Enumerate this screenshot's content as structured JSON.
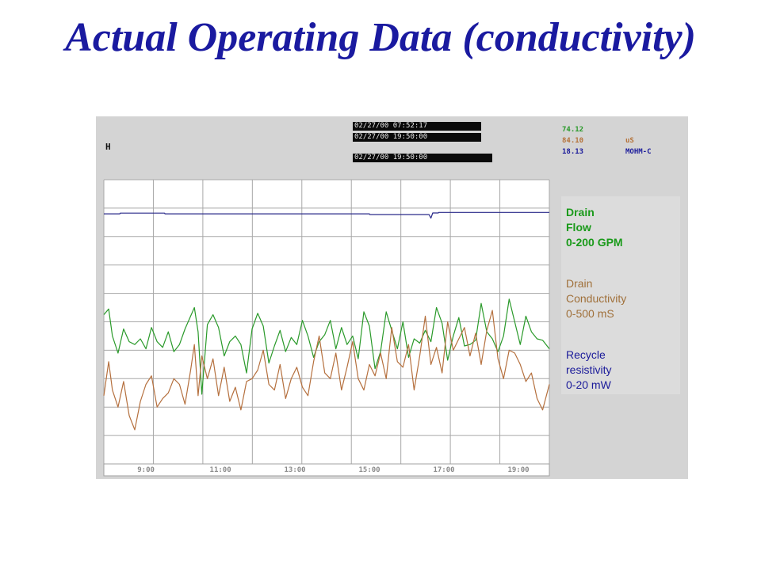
{
  "slide": {
    "title": "Actual Operating Data (conductivity)"
  },
  "display": {
    "marker": "H",
    "timestamps": [
      "02/27/00 07:52:17",
      "02/27/00 19:50:00",
      "02/27/00 19:50:00"
    ],
    "readouts": [
      {
        "value": "74.12",
        "unit": "",
        "color": "#2a9a2a"
      },
      {
        "value": "84.10",
        "unit": "uS",
        "color": "#b5733a"
      },
      {
        "value": "18.13",
        "unit": "MOHM-C",
        "color": "#1a1a9a"
      }
    ]
  },
  "legend": {
    "flow": {
      "line1": "Drain",
      "line2": "Flow",
      "line3": "0-200 GPM",
      "color": "#1a9a1a"
    },
    "conductivity": {
      "line1": "Drain",
      "line2": "Conductivity",
      "line3": "0-500 mS",
      "color": "#a0703a"
    },
    "resistivity": {
      "line1": "Recycle",
      "line2": "resistivity",
      "line3": "0-20 mW",
      "color": "#1a1a9a"
    }
  },
  "chart_data": {
    "type": "line",
    "x_ticks": [
      "9:00",
      "11:00",
      "13:00",
      "15:00",
      "17:00",
      "19:00"
    ],
    "x_tick_hours": [
      9,
      11,
      13,
      15,
      17,
      19
    ],
    "xlim": [
      7.87,
      19.83
    ],
    "series": [
      {
        "name": "Drain Flow 0-200 GPM",
        "color": "#2a9a2a",
        "x": [
          7.87,
          8.0,
          8.1,
          8.25,
          8.4,
          8.55,
          8.7,
          8.85,
          9.0,
          9.15,
          9.3,
          9.45,
          9.6,
          9.75,
          9.9,
          10.05,
          10.2,
          10.3,
          10.4,
          10.5,
          10.65,
          10.8,
          10.95,
          11.1,
          11.25,
          11.4,
          11.55,
          11.7,
          11.85,
          12.0,
          12.15,
          12.3,
          12.45,
          12.6,
          12.75,
          12.9,
          13.05,
          13.2,
          13.35,
          13.5,
          13.65,
          13.8,
          13.95,
          14.1,
          14.25,
          14.4,
          14.55,
          14.7,
          14.85,
          15.0,
          15.15,
          15.3,
          15.45,
          15.6,
          15.75,
          15.9,
          16.05,
          16.2,
          16.35,
          16.5,
          16.65,
          16.8,
          16.95,
          17.1,
          17.25,
          17.4,
          17.55,
          17.7,
          17.85,
          18.0,
          18.15,
          18.3,
          18.45,
          18.6,
          18.75,
          18.9,
          19.05,
          19.2,
          19.35,
          19.5,
          19.65,
          19.83
        ],
        "y": [
          105,
          109,
          90,
          78,
          95,
          86,
          84,
          88,
          81,
          96,
          86,
          82,
          93,
          79,
          84,
          95,
          104,
          110,
          93,
          49,
          98,
          105,
          96,
          76,
          86,
          90,
          84,
          64,
          95,
          106,
          97,
          71,
          83,
          94,
          79,
          89,
          84,
          101,
          90,
          75,
          86,
          91,
          101,
          81,
          96,
          84,
          90,
          74,
          107,
          97,
          67,
          79,
          107,
          94,
          81,
          100,
          75,
          88,
          85,
          94,
          86,
          110,
          99,
          73,
          90,
          103,
          83,
          84,
          87,
          113,
          93,
          88,
          79,
          90,
          116,
          100,
          84,
          104,
          93,
          88,
          87,
          81
        ]
      },
      {
        "name": "Drain Conductivity 0-500 mS",
        "color": "#b5703e",
        "x": [
          7.87,
          8.0,
          8.1,
          8.25,
          8.4,
          8.55,
          8.7,
          8.85,
          9.0,
          9.15,
          9.3,
          9.45,
          9.6,
          9.75,
          9.9,
          10.05,
          10.2,
          10.3,
          10.4,
          10.5,
          10.65,
          10.8,
          10.95,
          11.1,
          11.25,
          11.4,
          11.55,
          11.7,
          11.85,
          12.0,
          12.15,
          12.3,
          12.45,
          12.6,
          12.75,
          12.9,
          13.05,
          13.2,
          13.35,
          13.5,
          13.65,
          13.8,
          13.95,
          14.1,
          14.25,
          14.4,
          14.55,
          14.7,
          14.85,
          15.0,
          15.15,
          15.3,
          15.45,
          15.6,
          15.75,
          15.9,
          16.05,
          16.2,
          16.35,
          16.5,
          16.65,
          16.8,
          16.95,
          17.1,
          17.25,
          17.4,
          17.55,
          17.7,
          17.85,
          18.0,
          18.15,
          18.3,
          18.45,
          18.6,
          18.75,
          18.9,
          19.05,
          19.2,
          19.35,
          19.5,
          19.65,
          19.83
        ],
        "y": [
          120,
          180,
          130,
          100,
          145,
          85,
          60,
          110,
          140,
          155,
          100,
          115,
          125,
          150,
          140,
          105,
          165,
          210,
          120,
          190,
          150,
          185,
          120,
          170,
          110,
          135,
          95,
          145,
          150,
          165,
          200,
          140,
          130,
          175,
          115,
          150,
          170,
          135,
          120,
          180,
          225,
          160,
          150,
          195,
          130,
          170,
          215,
          150,
          130,
          175,
          155,
          195,
          150,
          240,
          180,
          170,
          210,
          130,
          190,
          260,
          175,
          205,
          160,
          250,
          200,
          220,
          240,
          190,
          230,
          175,
          235,
          270,
          185,
          150,
          200,
          195,
          175,
          145,
          160,
          115,
          95,
          140
        ]
      },
      {
        "name": "Recycle resistivity 0-20 mW",
        "color": "#2a2a8a",
        "x": [
          7.87,
          8.3,
          8.31,
          9.5,
          9.51,
          15.0,
          15.01,
          16.6,
          16.65,
          16.7,
          16.85,
          16.86,
          19.83
        ],
        "y": [
          17.6,
          17.6,
          17.65,
          17.65,
          17.6,
          17.6,
          17.55,
          17.55,
          17.3,
          17.66,
          17.66,
          17.7,
          17.7
        ]
      }
    ]
  }
}
